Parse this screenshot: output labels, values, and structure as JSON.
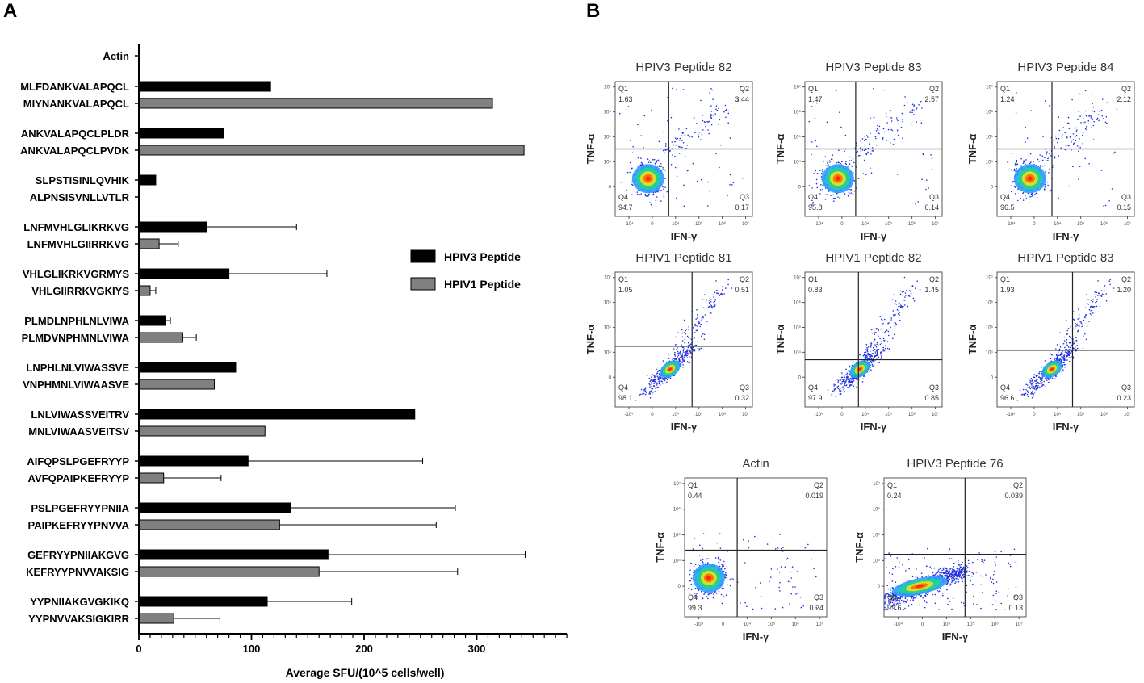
{
  "panel_labels": {
    "a": "A",
    "b": "B"
  },
  "colors": {
    "hpiv3": "#000000",
    "hpiv1": "#808080",
    "quad_dense": "#ff2200",
    "quad_sparse": "#2030e0"
  },
  "chart_data": [
    {
      "type": "bar",
      "orientation": "horizontal",
      "xlabel": "Average SFU/(10^5 cells/well)",
      "xlim": [
        0,
        380
      ],
      "xticks": [
        0,
        100,
        200,
        300
      ],
      "legend": [
        "HPIV3 Peptide",
        "HPIV1 Peptide"
      ],
      "legend_position": "right",
      "groups": [
        {
          "bars": [
            {
              "label": "Actin",
              "series": "HPIV3 Peptide",
              "value": 0,
              "error": 0
            }
          ]
        },
        {
          "bars": [
            {
              "label": "MLFDANKVALAPQCL",
              "series": "HPIV3 Peptide",
              "value": 117,
              "error": 0
            },
            {
              "label": "MIYNANKVALAPQCL",
              "series": "HPIV1 Peptide",
              "value": 314,
              "error": 0
            }
          ]
        },
        {
          "bars": [
            {
              "label": "ANKVALAPQCLPLDR",
              "series": "HPIV3 Peptide",
              "value": 75,
              "error": 0
            },
            {
              "label": "ANKVALAPQCLPVDK",
              "series": "HPIV1 Peptide",
              "value": 342,
              "error": 0
            }
          ]
        },
        {
          "bars": [
            {
              "label": "SLPSTISINLQVHIK",
              "series": "HPIV3 Peptide",
              "value": 15,
              "error": 0
            },
            {
              "label": "ALPNSISVNLLVTLR",
              "series": "HPIV1 Peptide",
              "value": 0,
              "error": 0
            }
          ]
        },
        {
          "bars": [
            {
              "label": "LNFMVHLGLIKRKVG",
              "series": "HPIV3 Peptide",
              "value": 60,
              "error": 80
            },
            {
              "label": "LNFMVHLGIIRRKVG",
              "series": "HPIV1 Peptide",
              "value": 18,
              "error": 17
            }
          ]
        },
        {
          "bars": [
            {
              "label": "VHLGLIKRKVGRMYS",
              "series": "HPIV3 Peptide",
              "value": 80,
              "error": 87
            },
            {
              "label": "VHLGIIRRKVGKIYS",
              "series": "HPIV1 Peptide",
              "value": 10,
              "error": 5
            }
          ]
        },
        {
          "bars": [
            {
              "label": "PLMDLNPHLNLVIWA",
              "series": "HPIV3 Peptide",
              "value": 24,
              "error": 4
            },
            {
              "label": "PLMDVNPHMNLVIWA",
              "series": "HPIV1 Peptide",
              "value": 39,
              "error": 12
            }
          ]
        },
        {
          "bars": [
            {
              "label": "LNPHLNLVIWASSVE",
              "series": "HPIV3 Peptide",
              "value": 86,
              "error": 0
            },
            {
              "label": "VNPHMNLVIWAASVE",
              "series": "HPIV1 Peptide",
              "value": 67,
              "error": 0
            }
          ]
        },
        {
          "bars": [
            {
              "label": "LNLVIWASSVEITRV",
              "series": "HPIV3 Peptide",
              "value": 245,
              "error": 0
            },
            {
              "label": "MNLVIWAASVEITSV",
              "series": "HPIV1 Peptide",
              "value": 112,
              "error": 0
            }
          ]
        },
        {
          "bars": [
            {
              "label": "AIFQPSLPGEFRYYP",
              "series": "HPIV3 Peptide",
              "value": 97,
              "error": 155
            },
            {
              "label": "AVFQPAIPKEFRYYP",
              "series": "HPIV1 Peptide",
              "value": 22,
              "error": 51
            }
          ]
        },
        {
          "bars": [
            {
              "label": "PSLPGEFRYYPNIIA",
              "series": "HPIV3 Peptide",
              "value": 135,
              "error": 146
            },
            {
              "label": "PAIPKEFRYYPNVVA",
              "series": "HPIV1 Peptide",
              "value": 125,
              "error": 139
            }
          ]
        },
        {
          "bars": [
            {
              "label": "GEFRYYPNIIAKGVG",
              "series": "HPIV3 Peptide",
              "value": 168,
              "error": 175
            },
            {
              "label": "KEFRYYPNVVAKSIG",
              "series": "HPIV1 Peptide",
              "value": 160,
              "error": 123
            }
          ]
        },
        {
          "bars": [
            {
              "label": "YYPNIIAKGVGKIKQ",
              "series": "HPIV3 Peptide",
              "value": 114,
              "error": 75
            },
            {
              "label": "YYPNVVAKSIGKIRR",
              "series": "HPIV1 Peptide",
              "value": 31,
              "error": 41
            }
          ]
        }
      ]
    },
    {
      "type": "scatter",
      "subtype": "flow-cytometry-quadrant",
      "x_axis_label": "IFN-γ",
      "y_axis_label": "TNF-α",
      "x_tick_labels": [
        "-10⁴",
        "0",
        "10⁴",
        "10⁵",
        "10⁶",
        "10⁷"
      ],
      "y_tick_labels": [
        "0",
        "10⁴",
        "10⁵",
        "10⁶",
        "10⁷"
      ],
      "plots": [
        {
          "title": "HPIV3 Peptide 82",
          "quadrants": {
            "Q1": "1.63",
            "Q2": "3.44",
            "Q3": "0.17",
            "Q4": "94.7"
          }
        },
        {
          "title": "HPIV3 Peptide 83",
          "quadrants": {
            "Q1": "1.47",
            "Q2": "2.57",
            "Q3": "0.14",
            "Q4": "95.8"
          }
        },
        {
          "title": "HPIV3 Peptide 84",
          "quadrants": {
            "Q1": "1.24",
            "Q2": "2.12",
            "Q3": "0.15",
            "Q4": "96.5"
          }
        },
        {
          "title": "HPIV1 Peptide 81",
          "quadrants": {
            "Q1": "1.05",
            "Q2": "0.51",
            "Q3": "0.32",
            "Q4": "98.1"
          }
        },
        {
          "title": "HPIV1 Peptide 82",
          "quadrants": {
            "Q1": "0.83",
            "Q2": "1.45",
            "Q3": "0.85",
            "Q4": "97.9"
          }
        },
        {
          "title": "HPIV1 Peptide 83",
          "quadrants": {
            "Q1": "1.93",
            "Q2": "1.20",
            "Q3": "0.23",
            "Q4": "96.6"
          }
        },
        {
          "title": "Actin",
          "quadrants": {
            "Q1": "0.44",
            "Q2": "0.019",
            "Q3": "0.24",
            "Q4": "99.3"
          }
        },
        {
          "title": "HPIV3 Peptide 76",
          "quadrants": {
            "Q1": "0.24",
            "Q2": "0.039",
            "Q3": "0.13",
            "Q4": "99.6"
          }
        }
      ]
    }
  ]
}
